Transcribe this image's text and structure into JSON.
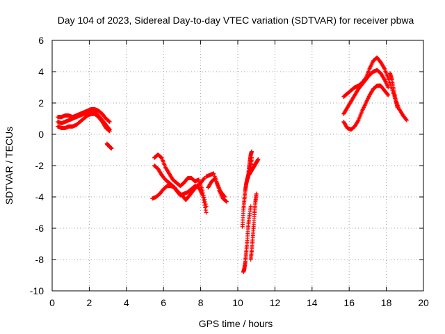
{
  "chart_data": {
    "type": "scatter",
    "title": "Day 104 of 2023, Sidereal Day-to-day VTEC variation (SDTVAR) for receiver pbwa",
    "xlabel": "GPS time / hours",
    "ylabel": "SDTVAR / TECUs",
    "xlim": [
      0,
      20
    ],
    "ylim": [
      -10,
      6
    ],
    "xticks": [
      0,
      2,
      4,
      6,
      8,
      10,
      12,
      14,
      16,
      18,
      20
    ],
    "yticks": [
      -10,
      -8,
      -6,
      -4,
      -2,
      0,
      2,
      4,
      6
    ],
    "grid": true,
    "marker": "+",
    "color": "#ff0000",
    "series": [
      {
        "name": "segment-1 upper",
        "x": [
          0.3,
          0.5,
          0.7,
          0.9,
          1.1,
          1.3,
          1.5,
          1.7,
          1.9,
          2.1,
          2.3,
          2.5,
          2.7,
          2.9,
          3.1
        ],
        "y": [
          1.1,
          1.1,
          1.2,
          1.2,
          1.1,
          1.2,
          1.3,
          1.4,
          1.5,
          1.6,
          1.6,
          1.5,
          1.3,
          1.0,
          0.8
        ]
      },
      {
        "name": "segment-1 middle",
        "x": [
          0.3,
          0.5,
          0.7,
          0.9,
          1.1,
          1.3,
          1.5,
          1.7,
          1.9,
          2.1,
          2.3,
          2.5,
          2.7,
          2.9,
          3.1
        ],
        "y": [
          0.8,
          0.7,
          0.8,
          0.9,
          1.0,
          1.1,
          1.2,
          1.3,
          1.4,
          1.5,
          1.4,
          1.2,
          0.9,
          0.6,
          0.3
        ]
      },
      {
        "name": "segment-1 lower",
        "x": [
          0.3,
          0.5,
          0.7,
          0.9,
          1.1,
          1.3,
          1.5,
          1.7,
          1.9,
          2.1,
          2.3,
          2.5,
          2.7,
          2.9,
          3.1
        ],
        "y": [
          0.5,
          0.4,
          0.4,
          0.5,
          0.5,
          0.6,
          0.8,
          1.0,
          1.2,
          1.3,
          1.3,
          1.1,
          0.8,
          0.4,
          0.2
        ]
      },
      {
        "name": "segment-1 tail",
        "x": [
          2.95,
          3.0,
          3.05,
          3.1,
          3.15,
          3.2
        ],
        "y": [
          -0.6,
          -0.7,
          -0.7,
          -0.8,
          -0.85,
          -0.9
        ]
      },
      {
        "name": "segment-2 upper",
        "x": [
          5.5,
          5.7,
          5.9,
          6.1,
          6.3,
          6.5,
          6.7,
          6.9,
          7.1,
          7.3,
          7.5,
          7.7,
          7.9,
          8.1,
          8.3
        ],
        "y": [
          -1.5,
          -1.3,
          -1.5,
          -2.1,
          -2.5,
          -2.9,
          -3.1,
          -3.3,
          -3.1,
          -2.8,
          -2.8,
          -3.0,
          -2.9,
          -3.6,
          -4.6
        ]
      },
      {
        "name": "segment-2 middle",
        "x": [
          5.5,
          5.7,
          5.9,
          6.1,
          6.3,
          6.5,
          6.7,
          6.9,
          7.1,
          7.3,
          7.5,
          7.7,
          7.9,
          8.1,
          8.3
        ],
        "y": [
          -2.0,
          -2.2,
          -2.6,
          -2.9,
          -3.1,
          -3.3,
          -3.6,
          -3.9,
          -3.8,
          -3.7,
          -3.5,
          -3.3,
          -3.4,
          -3.9,
          -5.0
        ]
      },
      {
        "name": "segment-2 lower",
        "x": [
          5.4,
          5.6,
          5.8,
          6.0,
          6.2,
          6.4,
          6.6,
          6.8,
          7.0,
          7.2,
          7.4,
          7.6,
          7.8,
          8.0,
          8.2
        ],
        "y": [
          -4.1,
          -4.0,
          -3.8,
          -3.5,
          -3.3,
          -3.3,
          -3.4,
          -3.7,
          -3.9,
          -4.2,
          -3.9,
          -3.6,
          -3.3,
          -3.1,
          -2.8
        ]
      },
      {
        "name": "segment-2 right",
        "x": [
          8.3,
          8.5,
          8.7,
          8.9,
          9.1,
          9.3
        ],
        "y": [
          -2.7,
          -2.6,
          -2.5,
          -3.2,
          -3.7,
          -4.0
        ]
      },
      {
        "name": "segment-2 right lower",
        "x": [
          8.4,
          8.6,
          8.8,
          9.0,
          9.2,
          9.4
        ],
        "y": [
          -3.4,
          -3.0,
          -2.8,
          -3.6,
          -4.1,
          -4.3
        ]
      },
      {
        "name": "segment-3 left arc",
        "x": [
          10.25,
          10.3,
          10.35,
          10.4,
          10.45,
          10.5,
          10.55,
          10.6,
          10.65,
          10.7,
          10.75
        ],
        "y": [
          -5.9,
          -4.9,
          -4.2,
          -3.6,
          -3.2,
          -2.9,
          -2.7,
          -2.5,
          -2.3,
          -2.1,
          -1.5
        ]
      },
      {
        "name": "segment-3 deep dip",
        "x": [
          10.3,
          10.35,
          10.4,
          10.45,
          10.5,
          10.55,
          10.6,
          10.7
        ],
        "y": [
          -8.8,
          -8.6,
          -8.2,
          -7.6,
          -6.9,
          -6.1,
          -5.4,
          -4.6
        ]
      },
      {
        "name": "segment-3 spike",
        "x": [
          10.55,
          10.6,
          10.65,
          10.7,
          10.75
        ],
        "y": [
          -2.8,
          -2.2,
          -1.7,
          -1.3,
          -1.1
        ]
      },
      {
        "name": "segment-3 right",
        "x": [
          10.6,
          10.7,
          10.8,
          10.9,
          11.0,
          11.1
        ],
        "y": [
          -2.6,
          -2.4,
          -2.2,
          -2.0,
          -1.8,
          -1.6
        ]
      },
      {
        "name": "segment-3 right drop",
        "x": [
          10.7,
          10.75,
          10.8,
          10.85,
          10.9,
          10.95,
          11.0
        ],
        "y": [
          -8.0,
          -7.4,
          -6.7,
          -5.9,
          -5.0,
          -4.3,
          -3.8
        ]
      },
      {
        "name": "segment-4 upper",
        "x": [
          15.7,
          15.9,
          16.1,
          16.3,
          16.5,
          16.7,
          16.9,
          17.1,
          17.3,
          17.5,
          17.7,
          17.9,
          18.1,
          18.3,
          18.5,
          18.7,
          18.9,
          19.1
        ],
        "y": [
          2.4,
          2.6,
          2.8,
          3.0,
          3.1,
          3.3,
          3.6,
          4.2,
          4.7,
          4.9,
          4.6,
          4.2,
          3.6,
          2.9,
          2.2,
          1.6,
          1.2,
          0.9
        ]
      },
      {
        "name": "segment-4 middle",
        "x": [
          15.7,
          15.9,
          16.1,
          16.3,
          16.5,
          16.7,
          16.9,
          17.1,
          17.3,
          17.5,
          17.7,
          17.9,
          18.1
        ],
        "y": [
          1.3,
          1.7,
          2.1,
          2.5,
          2.9,
          3.2,
          3.5,
          3.8,
          4.0,
          4.1,
          3.9,
          3.5,
          3.0
        ]
      },
      {
        "name": "segment-4 lower",
        "x": [
          15.7,
          15.9,
          16.1,
          16.3,
          16.5,
          16.7,
          16.9,
          17.1,
          17.3,
          17.5,
          17.7,
          17.9,
          18.1
        ],
        "y": [
          0.8,
          0.4,
          0.3,
          0.5,
          0.9,
          1.5,
          2.0,
          2.5,
          2.9,
          3.1,
          3.1,
          2.8,
          2.5
        ]
      },
      {
        "name": "segment-4 right side",
        "x": [
          18.2,
          18.3,
          18.4,
          18.5,
          18.6
        ],
        "y": [
          3.9,
          3.5,
          2.8,
          2.2,
          1.7
        ]
      }
    ]
  }
}
